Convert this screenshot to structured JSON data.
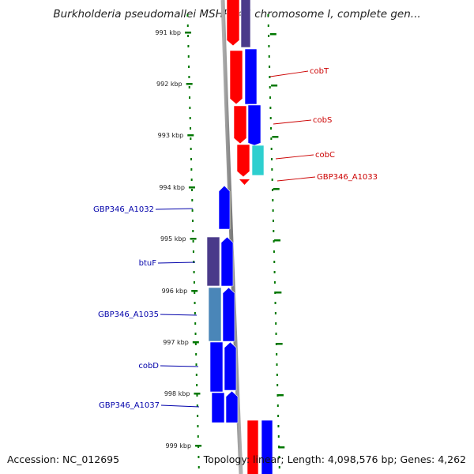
{
  "title": "Burkholderia pseudomallei MSHR346 chromosome I, complete gen...",
  "footer": {
    "accession": "Accession: NC_012695",
    "topology": "Topology: linear; Length: 4,098,576 bp; Genes: 4,262"
  },
  "ticks": [
    "991 kbp",
    "992 kbp",
    "993 kbp",
    "994 kbp",
    "995 kbp",
    "996 kbp",
    "997 kbp",
    "998 kbp",
    "999 kbp"
  ],
  "genes_right": [
    {
      "label": "cobT",
      "color": "#cc0000"
    },
    {
      "label": "cobS",
      "color": "#cc0000"
    },
    {
      "label": "cobC",
      "color": "#cc0000"
    },
    {
      "label": "GBP346_A1033",
      "color": "#cc0000"
    }
  ],
  "genes_left": [
    {
      "label": "GBP346_A1032",
      "color": "#0000aa"
    },
    {
      "label": "btuF",
      "color": "#0000aa"
    },
    {
      "label": "GBP346_A1035",
      "color": "#0000aa"
    },
    {
      "label": "cobD",
      "color": "#0000aa"
    },
    {
      "label": "GBP346_A1037",
      "color": "#0000aa"
    }
  ],
  "colors": {
    "forward_strand": "#ff0000",
    "reverse_strand": "#0000ff",
    "dark_blue": "#4a3a8a",
    "steel_blue": "#4a86b8",
    "cyan": "#2ecfcf",
    "backbone": "#8c8c8c",
    "tick_green": "#007700"
  }
}
